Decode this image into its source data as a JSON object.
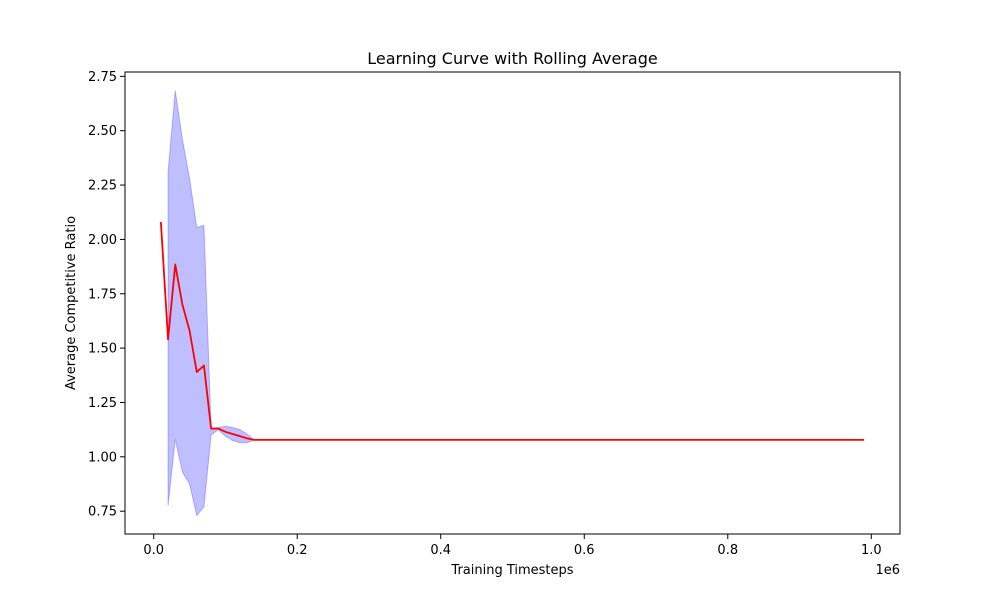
{
  "chart_data": {
    "type": "line",
    "title": "Learning Curve with Rolling Average",
    "xlabel": "Training Timesteps",
    "ylabel": "Average Competitive Ratio",
    "x_offset_label": "1e6",
    "xlim": [
      -40000,
      1040000
    ],
    "ylim": [
      0.645,
      2.77
    ],
    "grid": false,
    "xticks": [
      0,
      200000,
      400000,
      600000,
      800000,
      1000000
    ],
    "xtick_labels": [
      "0.0",
      "0.2",
      "0.4",
      "0.6",
      "0.8",
      "1.0"
    ],
    "yticks": [
      0.75,
      1.0,
      1.25,
      1.5,
      1.75,
      2.0,
      2.25,
      2.5,
      2.75
    ],
    "ytick_labels": [
      "0.75",
      "1.00",
      "1.25",
      "1.50",
      "1.75",
      "2.00",
      "2.25",
      "2.50",
      "2.75"
    ],
    "series": [
      {
        "kind": "line",
        "color": "#ff0000",
        "x": [
          10000,
          20000,
          30000,
          40000,
          50000,
          60000,
          70000,
          80000,
          90000,
          100000,
          110000,
          120000,
          130000,
          140000,
          990000
        ],
        "y": [
          2.08,
          1.54,
          1.885,
          1.7,
          1.58,
          1.39,
          1.42,
          1.13,
          1.13,
          1.115,
          1.105,
          1.095,
          1.085,
          1.078,
          1.078
        ]
      },
      {
        "kind": "band",
        "color": "#0000ff",
        "opacity": 0.25,
        "x": [
          20000,
          30000,
          40000,
          50000,
          60000,
          70000,
          80000,
          90000,
          100000,
          110000,
          120000,
          130000,
          140000
        ],
        "upper": [
          2.31,
          2.685,
          2.46,
          2.28,
          2.055,
          2.065,
          1.13,
          1.135,
          1.14,
          1.135,
          1.125,
          1.105,
          1.078
        ],
        "lower": [
          0.775,
          1.08,
          0.93,
          0.875,
          0.73,
          0.77,
          1.1,
          1.125,
          1.095,
          1.075,
          1.065,
          1.065,
          1.078
        ]
      }
    ]
  }
}
